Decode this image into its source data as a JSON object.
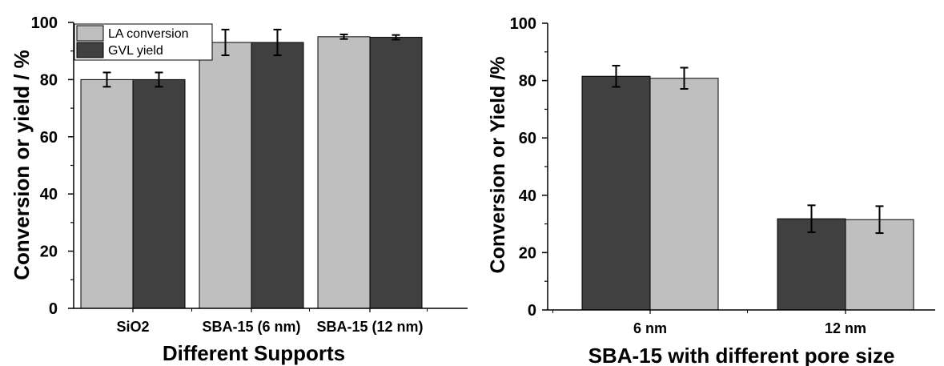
{
  "chart_data": [
    {
      "type": "bar",
      "categories": [
        "SiO2",
        "SBA-15 (6 nm)",
        "SBA-15 (12 nm)"
      ],
      "series": [
        {
          "name": "LA conversion",
          "color": "#bfbfbf",
          "values": [
            80,
            93,
            95
          ],
          "errors": [
            2.5,
            4.5,
            0.8
          ]
        },
        {
          "name": "GVL yield",
          "color": "#404040",
          "values": [
            80,
            93,
            94.8
          ],
          "errors": [
            2.5,
            4.5,
            0.8
          ]
        }
      ],
      "xlabel": "Different Supports",
      "ylabel": "Conversion or yield / %",
      "ylim": [
        0,
        100
      ],
      "yticks": [
        0,
        20,
        40,
        60,
        80,
        100
      ],
      "legend": "top-left",
      "grid": false
    },
    {
      "type": "bar",
      "categories": [
        "6 nm",
        "12 nm"
      ],
      "series": [
        {
          "color": "#404040",
          "values": [
            81.5,
            31.8
          ],
          "errors": [
            3.7,
            4.7
          ]
        },
        {
          "color": "#bfbfbf",
          "values": [
            80.8,
            31.5
          ],
          "errors": [
            3.7,
            4.7
          ]
        }
      ],
      "xlabel": "SBA-15 with different pore size",
      "ylabel": "Conversion or Yield /%",
      "ylim": [
        0,
        100
      ],
      "yticks": [
        0,
        20,
        40,
        60,
        80,
        100
      ],
      "grid": false
    }
  ]
}
